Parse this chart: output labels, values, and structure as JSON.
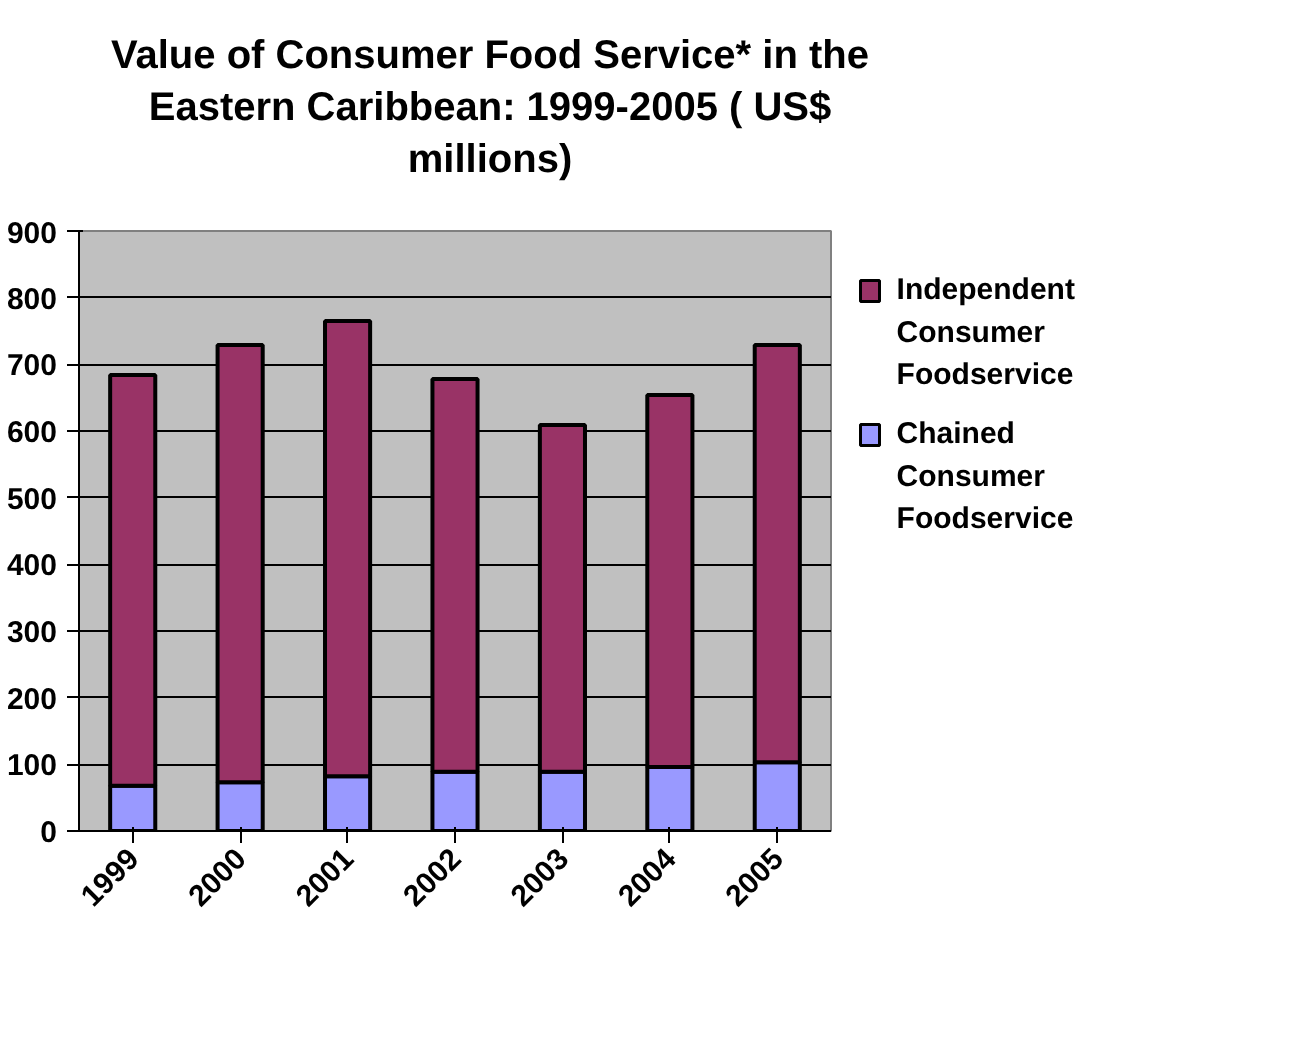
{
  "chart_data": {
    "type": "bar",
    "title": "Value of Consumer Food Service* in the Eastern Caribbean:  1999-2005 ( US$ millions)",
    "categories": [
      "1999",
      "2000",
      "2001",
      "2002",
      "2003",
      "2004",
      "2005"
    ],
    "stacked": true,
    "series": [
      {
        "name": "Chained Consumer Foodservice",
        "color": "#9999ff",
        "values": [
          68,
          73,
          82,
          89,
          89,
          96,
          103
        ]
      },
      {
        "name": "Independent Consumer Foodservice",
        "color": "#993366",
        "values": [
          616,
          656,
          683,
          589,
          520,
          558,
          626
        ]
      }
    ],
    "ylim": [
      0,
      900
    ],
    "yticks": [
      0,
      100,
      200,
      300,
      400,
      500,
      600,
      700,
      800,
      900
    ],
    "grid": "y",
    "legend": "right"
  }
}
